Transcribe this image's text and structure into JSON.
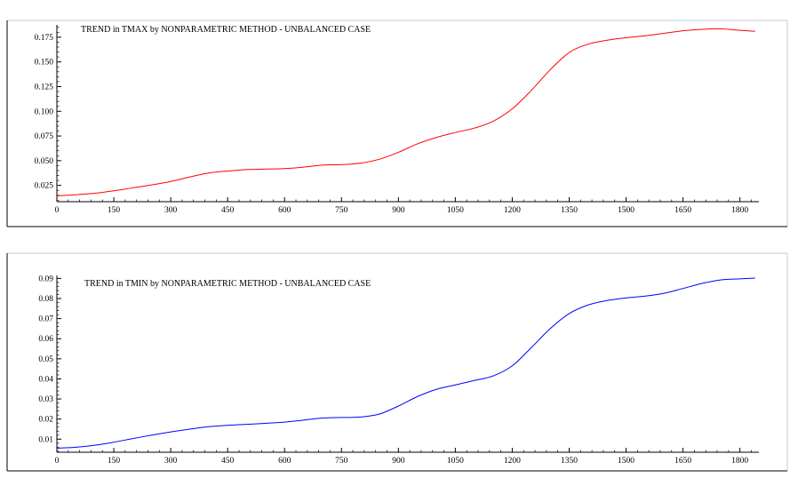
{
  "chart_data": [
    {
      "type": "line",
      "title": "TREND in TMAX by NONPARAMETRIC METHOD - UNBALANCED CASE",
      "xlabel": "",
      "ylabel": "",
      "xlim": [
        0,
        1850
      ],
      "ylim": [
        0.0085,
        0.1875
      ],
      "x_ticks": [
        0,
        150,
        300,
        450,
        600,
        750,
        900,
        1050,
        1200,
        1350,
        1500,
        1650,
        1800
      ],
      "y_ticks": [
        0.025,
        0.05,
        0.075,
        0.1,
        0.125,
        0.15,
        0.175
      ],
      "y_tick_labels": [
        "0.025",
        "0.050",
        "0.075",
        "0.100",
        "0.125",
        "0.150",
        "0.175"
      ],
      "grid": false,
      "series": [
        {
          "color": "#ff0000",
          "x": [
            0,
            50,
            100,
            150,
            200,
            250,
            300,
            350,
            400,
            450,
            500,
            550,
            600,
            650,
            700,
            750,
            800,
            850,
            900,
            950,
            1000,
            1050,
            1100,
            1150,
            1200,
            1250,
            1300,
            1350,
            1400,
            1450,
            1500,
            1550,
            1600,
            1650,
            1700,
            1750,
            1800,
            1840
          ],
          "y": [
            0.0145,
            0.0155,
            0.017,
            0.0195,
            0.0225,
            0.0255,
            0.029,
            0.0335,
            0.0375,
            0.0395,
            0.041,
            0.0415,
            0.042,
            0.0435,
            0.0455,
            0.046,
            0.0475,
            0.0515,
            0.0585,
            0.067,
            0.0735,
            0.0785,
            0.083,
            0.09,
            0.1025,
            0.121,
            0.142,
            0.1595,
            0.168,
            0.172,
            0.1745,
            0.1765,
            0.179,
            0.1815,
            0.183,
            0.1835,
            0.182,
            0.181
          ]
        }
      ]
    },
    {
      "type": "line",
      "title": "TREND in TMIN by NONPARAMETRIC METHOD - UNBALANCED CASE",
      "xlabel": "",
      "ylabel": "",
      "xlim": [
        0,
        1850
      ],
      "ylim": [
        0.0035,
        0.0915
      ],
      "x_ticks": [
        0,
        150,
        300,
        450,
        600,
        750,
        900,
        1050,
        1200,
        1350,
        1500,
        1650,
        1800
      ],
      "y_ticks": [
        0.01,
        0.02,
        0.03,
        0.04,
        0.05,
        0.06,
        0.07,
        0.08,
        0.09
      ],
      "y_tick_labels": [
        "0.01",
        "0.02",
        "0.03",
        "0.04",
        "0.05",
        "0.06",
        "0.07",
        "0.08",
        "0.09"
      ],
      "grid": false,
      "series": [
        {
          "color": "#0000ff",
          "x": [
            0,
            50,
            100,
            150,
            200,
            250,
            300,
            350,
            400,
            450,
            500,
            550,
            600,
            650,
            700,
            750,
            800,
            850,
            900,
            950,
            1000,
            1050,
            1100,
            1150,
            1200,
            1250,
            1300,
            1350,
            1400,
            1450,
            1500,
            1550,
            1600,
            1650,
            1700,
            1750,
            1800,
            1840
          ],
          "y": [
            0.0055,
            0.006,
            0.007,
            0.0085,
            0.0103,
            0.012,
            0.0136,
            0.015,
            0.0162,
            0.0169,
            0.0174,
            0.0179,
            0.0185,
            0.0195,
            0.0205,
            0.0208,
            0.021,
            0.0225,
            0.0265,
            0.0312,
            0.0348,
            0.037,
            0.0392,
            0.0415,
            0.0465,
            0.0555,
            0.065,
            0.0725,
            0.0768,
            0.079,
            0.0803,
            0.0812,
            0.0826,
            0.085,
            0.0875,
            0.0893,
            0.0898,
            0.0902
          ]
        }
      ]
    }
  ]
}
